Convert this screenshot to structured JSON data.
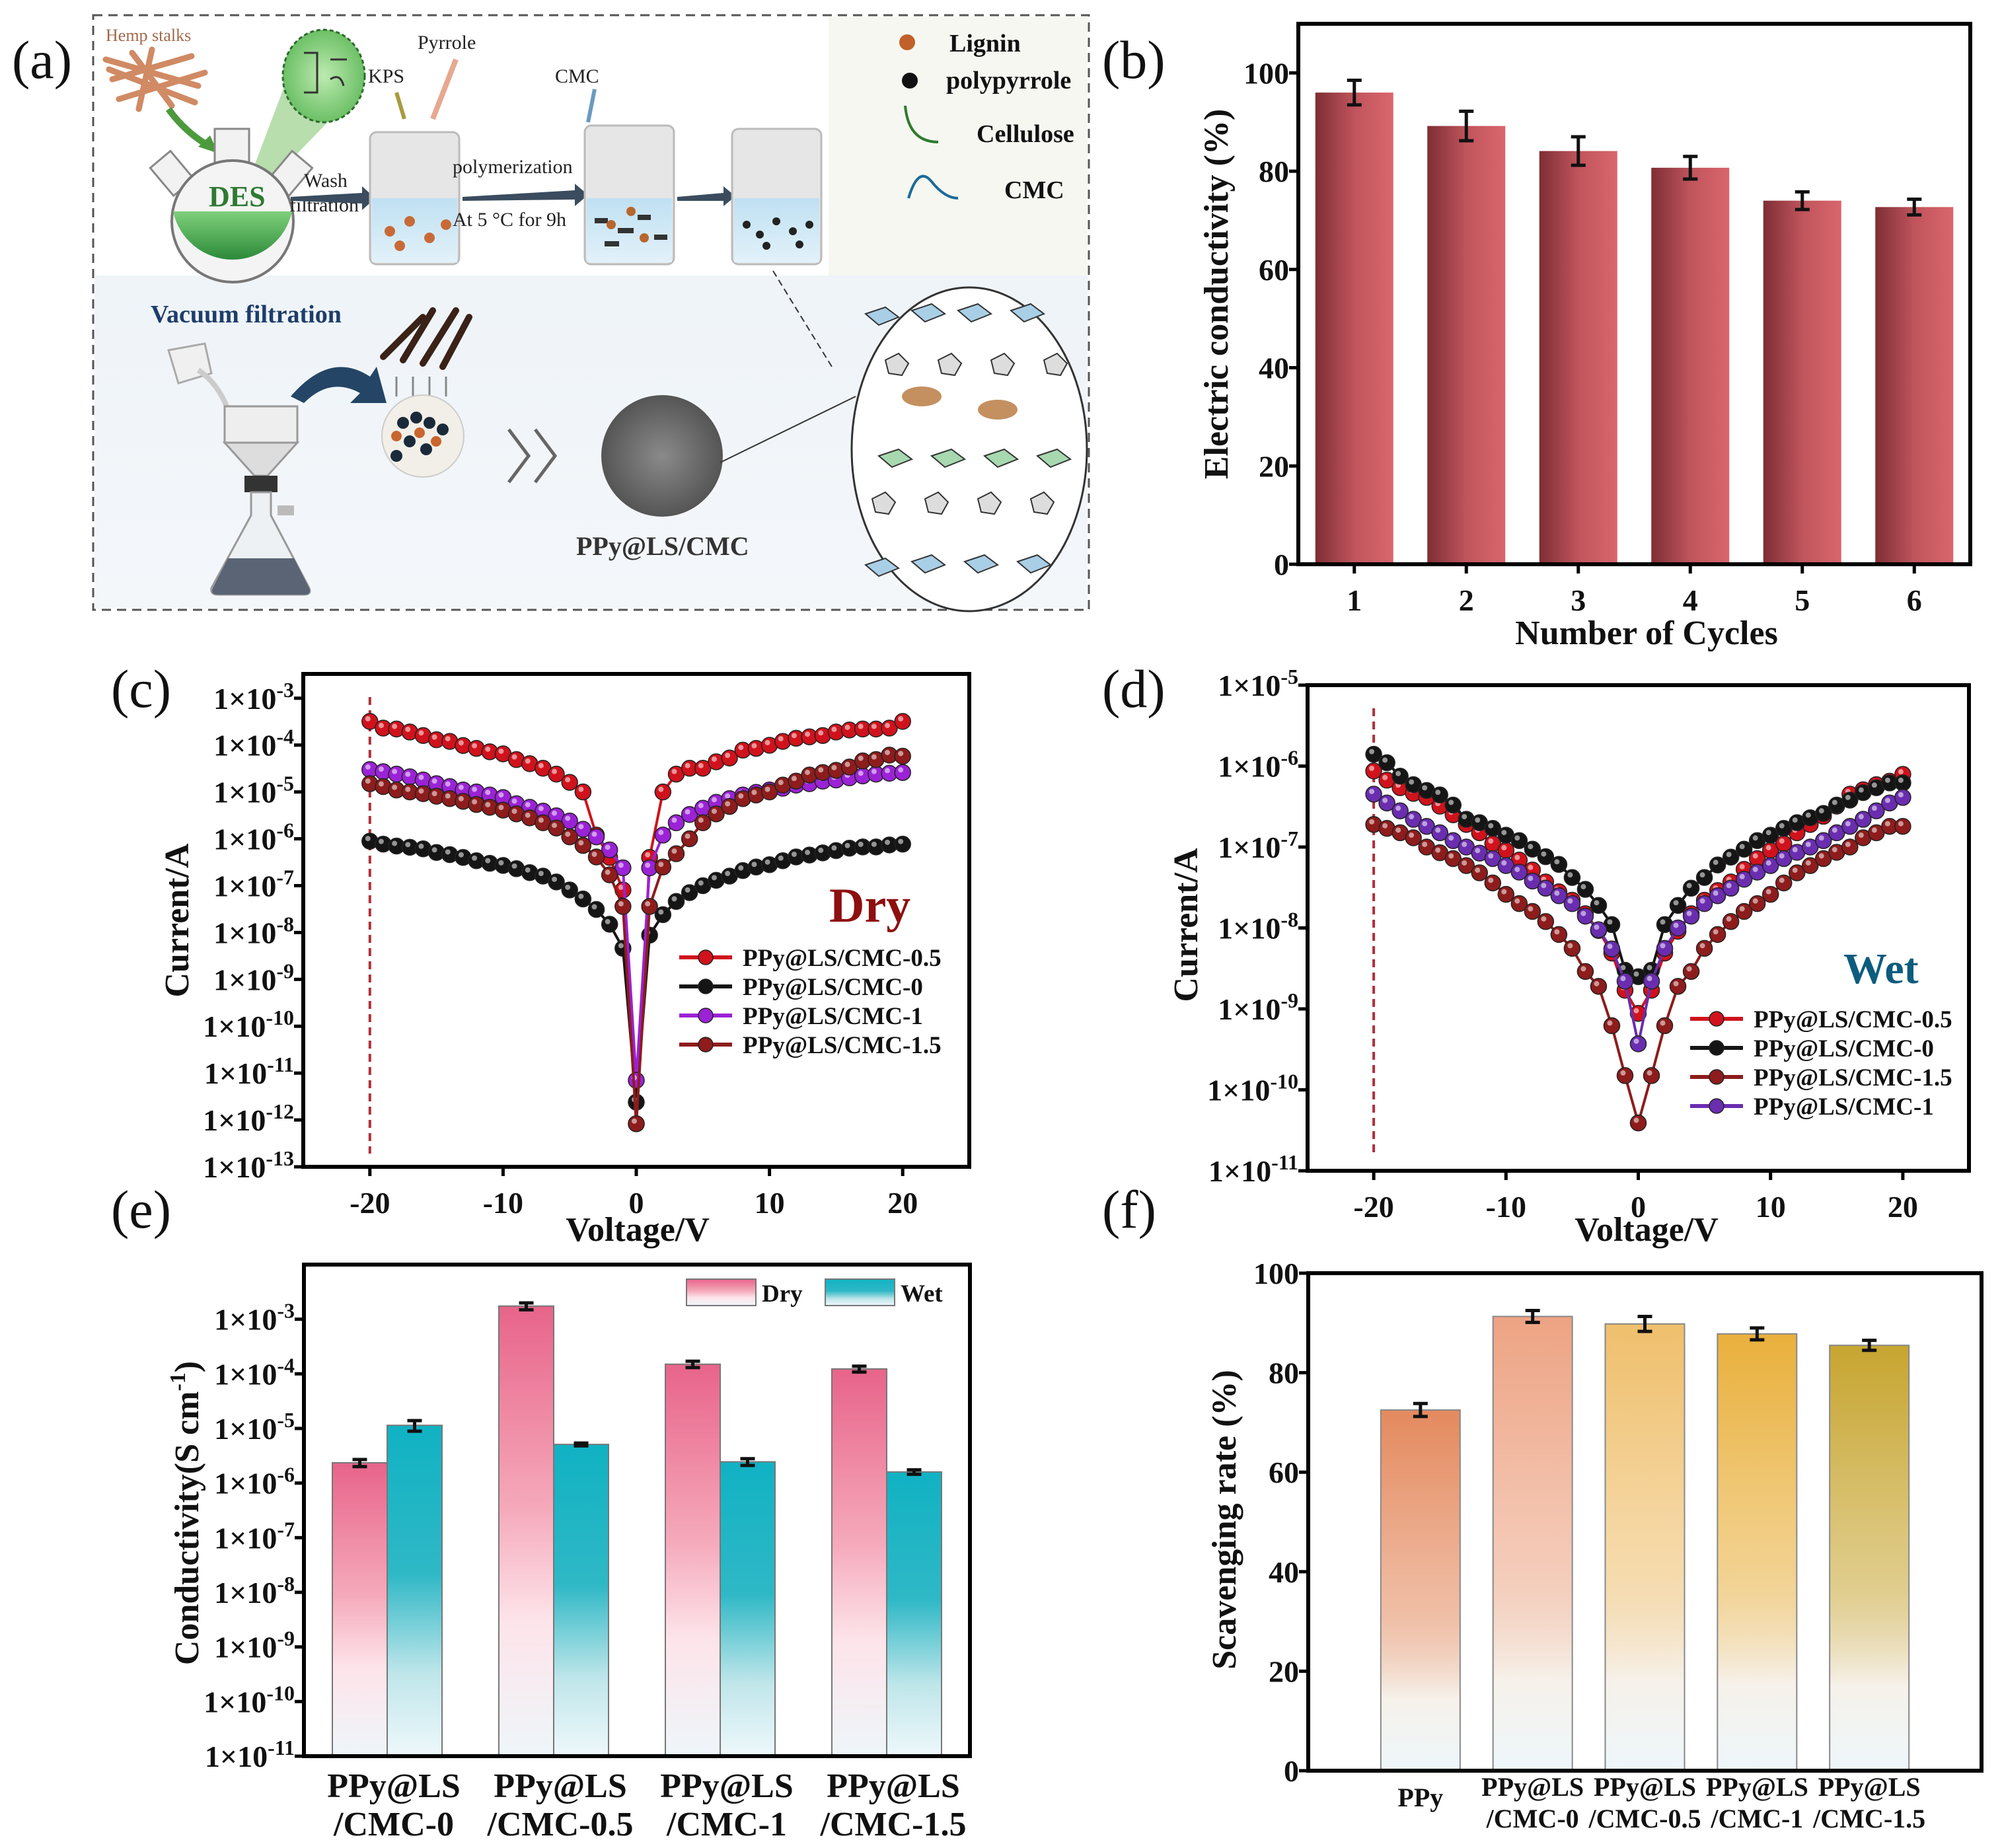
{
  "panel_labels": {
    "a": "(a)",
    "b": "(b)",
    "c": "(c)",
    "d": "(d)",
    "e": "(e)",
    "f": "(f)"
  },
  "panel_a": {
    "hemp": "Hemp stalks",
    "kps": "KPS",
    "pyrrole": "Pyrrole",
    "cmc_arrow": "CMC",
    "des": "DES",
    "wash": "Wash",
    "filtration": "filtration",
    "polymerization": "polymerization",
    "condition": "At 5 °C for 9h",
    "vacuum": "Vacuum filtration",
    "product": "PPy@LS/CMC",
    "legend": {
      "lignin": "Lignin",
      "polypyrrole": "polypyrrole",
      "cellulose": "Cellulose",
      "cmc": "CMC"
    },
    "colors": {
      "lignin": "#c0602a",
      "polypyrrole": "#111111",
      "cellulose": "#2c7a2c",
      "cmc": "#1a6a9a"
    }
  },
  "chart_data": [
    {
      "id": "b",
      "type": "bar",
      "categories": [
        "1",
        "2",
        "3",
        "4",
        "5",
        "6"
      ],
      "values": [
        96.0,
        89.2,
        84.1,
        80.7,
        74.0,
        72.7
      ],
      "errors": [
        2.5,
        3.0,
        2.9,
        2.3,
        1.8,
        1.6
      ],
      "xlabel": "Number of Cycles",
      "ylabel": "Electric conductivity (%)",
      "ylim": [
        0,
        110
      ],
      "yticks": [
        0,
        20,
        40,
        60,
        80,
        100
      ],
      "color": "#c9545c"
    },
    {
      "id": "c",
      "type": "line",
      "yscale": "log",
      "xlabel": "Voltage/V",
      "ylabel": "Current/A",
      "annotation": "Dry",
      "xlim": [
        -25,
        25
      ],
      "xticks": [
        -20,
        -10,
        0,
        10,
        20
      ],
      "ylim": [
        1e-13,
        0.0033
      ],
      "yticks": [
        {
          "v": 0.001,
          "label": "1×10^-3"
        },
        {
          "v": 0.0001,
          "label": "1×10^-4"
        },
        {
          "v": 1e-05,
          "label": "1×10^-5"
        },
        {
          "v": 1e-06,
          "label": "1×10^-6"
        },
        {
          "v": 1e-07,
          "label": "1×10^-7"
        },
        {
          "v": 1e-08,
          "label": "1×10^-8"
        },
        {
          "v": 1e-09,
          "label": "1×10^-9"
        },
        {
          "v": 1e-10,
          "label": "1×10^-10"
        },
        {
          "v": 1e-11,
          "label": "1×10^-11"
        },
        {
          "v": 1e-12,
          "label": "1×10^-12"
        },
        {
          "v": 1e-13,
          "label": "1×10^-13"
        }
      ],
      "reference_line_x": -20,
      "x": [
        -20,
        -19,
        -18,
        -17,
        -16,
        -15,
        -14,
        -13,
        -12,
        -11,
        -10,
        -9,
        -8,
        -7,
        -6,
        -5,
        -4,
        -3,
        -2,
        -1,
        0,
        1,
        2,
        3,
        4,
        5,
        6,
        7,
        8,
        9,
        10,
        11,
        12,
        13,
        14,
        15,
        16,
        17,
        18,
        19,
        20
      ],
      "series": [
        {
          "name": "PPy@LS/CMC-0.5",
          "color": "#d0121c",
          "values": [
            0.00032,
            0.00023,
            0.00022,
            0.00019,
            0.00016,
            0.00013,
            0.00012,
            9.8e-05,
            8.5e-05,
            7.2e-05,
            6.5e-05,
            4.9e-05,
            4e-05,
            3.2e-05,
            2.4e-05,
            1.6e-05,
            1e-05,
            1.2e-06,
            4e-07,
            8.1e-08,
            8.3e-13,
            4e-07,
            1e-05,
            2.4e-05,
            3.2e-05,
            3.2e-05,
            4.4e-05,
            5.3e-05,
            7.8e-05,
            8.5e-05,
            9.9e-05,
            0.00012,
            0.00014,
            0.00015,
            0.00016,
            0.00019,
            0.00021,
            0.00022,
            0.00022,
            0.00023,
            0.00032
          ]
        },
        {
          "name": "PPy@LS/CMC-0",
          "color": "#151515",
          "values": [
            8.9e-07,
            7.7e-07,
            7e-07,
            6.6e-07,
            6.1e-07,
            5.1e-07,
            4.6e-07,
            4e-07,
            3.4e-07,
            3e-07,
            2.7e-07,
            2.3e-07,
            1.9e-07,
            1.6e-07,
            1.2e-07,
            8.1e-08,
            5.2e-08,
            3.1e-08,
            1.5e-08,
            4.6e-09,
            2.4e-12,
            8.8e-09,
            2.4e-08,
            4.6e-08,
            7.1e-08,
            1e-07,
            1.3e-07,
            1.6e-07,
            2.1e-07,
            2.5e-07,
            2.8e-07,
            3.4e-07,
            4.1e-07,
            4.5e-07,
            5e-07,
            5.6e-07,
            6.3e-07,
            6.7e-07,
            6.7e-07,
            7.4e-07,
            7.7e-07
          ]
        },
        {
          "name": "PPy@LS/CMC-1",
          "color": "#9b22d6",
          "values": [
            3e-05,
            2.7e-05,
            2.4e-05,
            2.1e-05,
            1.8e-05,
            1.5e-05,
            1.3e-05,
            1.1e-05,
            1e-05,
            8.6e-06,
            7.6e-06,
            5.6e-06,
            4.7e-06,
            3.9e-06,
            3.1e-06,
            2.4e-06,
            1.6e-06,
            1.1e-06,
            5.8e-07,
            2.4e-07,
            7e-12,
            2.4e-07,
            1.2e-06,
            2.2e-06,
            3.3e-06,
            4.5e-06,
            6e-06,
            7.2e-06,
            8.6e-06,
            9.8e-06,
            1.1e-05,
            1.2e-05,
            1.4e-05,
            1.5e-05,
            1.7e-05,
            1.8e-05,
            2e-05,
            2.2e-05,
            2.4e-05,
            2.5e-05,
            2.6e-05
          ]
        },
        {
          "name": "PPy@LS/CMC-1.5",
          "color": "#8e1c1c",
          "values": [
            1.5e-05,
            1.3e-05,
            1.1e-05,
            1e-05,
            9.2e-06,
            8.1e-06,
            7.2e-06,
            6.3e-06,
            5.4e-06,
            4.7e-06,
            4.1e-06,
            3.4e-06,
            2.8e-06,
            2.2e-06,
            1.7e-06,
            1.1e-06,
            7.2e-07,
            4.1e-07,
            1.7e-07,
            3.6e-08,
            8.3e-13,
            3.6e-08,
            2.5e-07,
            4.8e-07,
            1e-06,
            2.2e-06,
            3.4e-06,
            4.9e-06,
            7.2e-06,
            8.6e-06,
            1e-05,
            1.4e-05,
            1.7e-05,
            2.3e-05,
            2.6e-05,
            2.9e-05,
            3.4e-05,
            4.6e-05,
            4.9e-05,
            6.1e-05,
            5.8e-05
          ]
        }
      ],
      "legend_position": "right-center"
    },
    {
      "id": "d",
      "type": "line",
      "yscale": "log",
      "xlabel": "Voltage/V",
      "ylabel": "Current/A",
      "annotation": "Wet",
      "xlim": [
        -25,
        25
      ],
      "xticks": [
        -20,
        -10,
        0,
        10,
        20
      ],
      "ylim": [
        1e-11,
        1e-05
      ],
      "yticks": [
        {
          "v": 1e-05,
          "label": "1×10^-5"
        },
        {
          "v": 1e-06,
          "label": "1×10^-6"
        },
        {
          "v": 1e-07,
          "label": "1×10^-7"
        },
        {
          "v": 1e-08,
          "label": "1×10^-8"
        },
        {
          "v": 1e-09,
          "label": "1×10^-9"
        },
        {
          "v": 1e-10,
          "label": "1×10^-10"
        },
        {
          "v": 1e-11,
          "label": "1×10^-11"
        }
      ],
      "reference_line_x": -20,
      "x": [
        -20,
        -19,
        -18,
        -17,
        -16,
        -15,
        -14,
        -13,
        -12,
        -11,
        -10,
        -9,
        -8,
        -7,
        -6,
        -5,
        -4,
        -3,
        -2,
        -1,
        0,
        1,
        2,
        3,
        4,
        5,
        6,
        7,
        8,
        9,
        10,
        11,
        12,
        13,
        14,
        15,
        16,
        17,
        18,
        19,
        20
      ],
      "series": [
        {
          "name": "PPy@LS/CMC-0.5",
          "color": "#d0121c",
          "values": [
            8.7e-07,
            6.7e-07,
            5.4e-07,
            4.6e-07,
            4.1e-07,
            3.2e-07,
            2.5e-07,
            1.9e-07,
            1.5e-07,
            1.1e-07,
            9.1e-08,
            6.9e-08,
            5.2e-08,
            3.7e-08,
            2.8e-08,
            2.2e-08,
            1.5e-08,
            9.3e-09,
            4.9e-09,
            1.7e-09,
            8.8e-10,
            1.7e-09,
            4.9e-09,
            9.1e-09,
            1.5e-08,
            2.2e-08,
            2.9e-08,
            3.7e-08,
            5.3e-08,
            7.2e-08,
            9.1e-08,
            1.1e-07,
            1.5e-07,
            1.9e-07,
            2.4e-07,
            3.2e-07,
            4.5e-07,
            5.1e-07,
            5.9e-07,
            6.5e-07,
            7.9e-07
          ]
        },
        {
          "name": "PPy@LS/CMC-0",
          "color": "#151515",
          "values": [
            1.4e-06,
            1.1e-06,
            7.5e-07,
            5.9e-07,
            5e-07,
            4.4e-07,
            3.3e-07,
            2.2e-07,
            2e-07,
            1.7e-07,
            1.4e-07,
            1.2e-07,
            9.4e-08,
            7.6e-08,
            6.1e-08,
            4.2e-08,
            3e-08,
            1.9e-08,
            1.1e-08,
            3e-09,
            2.5e-09,
            3e-09,
            1.1e-08,
            1.9e-08,
            3.1e-08,
            4.2e-08,
            6e-08,
            7.5e-08,
            9.4e-08,
            1.2e-07,
            1.4e-07,
            1.7e-07,
            2e-07,
            2.3e-07,
            2.6e-07,
            3.3e-07,
            3.8e-07,
            4.7e-07,
            5.4e-07,
            6.2e-07,
            6.2e-07
          ]
        },
        {
          "name": "PPy@LS/CMC-1.5",
          "color": "#8e1c1c",
          "values": [
            1.9e-07,
            1.7e-07,
            1.5e-07,
            1.3e-07,
            1e-07,
            8.5e-08,
            7.2e-08,
            5.9e-08,
            4.8e-08,
            3.6e-08,
            2.6e-08,
            2e-08,
            1.6e-08,
            1.2e-08,
            8.3e-09,
            5.6e-09,
            2.9e-09,
            1.9e-09,
            6.2e-10,
            1.5e-10,
            3.9e-11,
            1.5e-10,
            6.2e-10,
            1.9e-09,
            2.9e-09,
            5.6e-09,
            8.3e-09,
            1.2e-08,
            1.6e-08,
            2e-08,
            2.6e-08,
            3.6e-08,
            4.8e-08,
            5.9e-08,
            7.2e-08,
            8.6e-08,
            1e-07,
            1.3e-07,
            1.5e-07,
            1.8e-07,
            1.8e-07
          ]
        },
        {
          "name": "PPy@LS/CMC-1",
          "color": "#6a2db0",
          "values": [
            4.5e-07,
            3.5e-07,
            2.8e-07,
            2.2e-07,
            1.8e-07,
            1.5e-07,
            1.2e-07,
            1e-07,
            8.4e-08,
            7.2e-08,
            5.9e-08,
            4.9e-08,
            3.8e-08,
            3.1e-08,
            2.5e-08,
            2e-08,
            1.4e-08,
            9.5e-09,
            5.5e-09,
            2.2e-09,
            3.7e-10,
            2.2e-09,
            5.6e-09,
            1e-08,
            1.4e-08,
            2e-08,
            2.5e-08,
            3.1e-08,
            4e-08,
            4.9e-08,
            5.9e-08,
            7.2e-08,
            8.6e-08,
            1e-07,
            1.2e-07,
            1.5e-07,
            1.8e-07,
            2.2e-07,
            2.8e-07,
            3.5e-07,
            4.1e-07
          ]
        }
      ],
      "legend_position": "bottom-right"
    },
    {
      "id": "e",
      "type": "bar",
      "yscale": "log",
      "categories": [
        [
          "PPy@LS",
          "/CMC-0"
        ],
        [
          "PPy@LS",
          "/CMC-0.5"
        ],
        [
          "PPy@LS",
          "/CMC-1"
        ],
        [
          "PPy@LS",
          "/CMC-1.5"
        ]
      ],
      "ylabel": "Conductivity(S cm^-1)",
      "ylim": [
        1e-11,
        0.01
      ],
      "yticks": [
        {
          "v": 0.001,
          "label": "1×10^-3"
        },
        {
          "v": 0.0001,
          "label": "1×10^-4"
        },
        {
          "v": 1e-05,
          "label": "1×10^-5"
        },
        {
          "v": 1e-06,
          "label": "1×10^-6"
        },
        {
          "v": 1e-07,
          "label": "1×10^-7"
        },
        {
          "v": 1e-08,
          "label": "1×10^-8"
        },
        {
          "v": 1e-09,
          "label": "1×10^-9"
        },
        {
          "v": 1e-10,
          "label": "1×10^-10"
        },
        {
          "v": 1e-11,
          "label": "1×10^-11"
        }
      ],
      "series": [
        {
          "name": "Dry",
          "color": "#e8688c",
          "values": [
            2.35e-06,
            0.00174,
            0.00015,
            0.000123
          ],
          "errors": [
            3.5e-07,
            0.00025,
            2e-05,
            1.5e-05
          ]
        },
        {
          "name": "Wet",
          "color": "#14b4c4",
          "values": [
            1.14e-05,
            5.1e-06,
            2.45e-06,
            1.6e-06
          ],
          "errors": [
            2.5e-06,
            3e-07,
            3.5e-07,
            1.5e-07
          ]
        }
      ],
      "legend_position": "top-right"
    },
    {
      "id": "f",
      "type": "bar",
      "categories": [
        [
          "PPy"
        ],
        [
          "PPy@LS",
          "/CMC-0"
        ],
        [
          "PPy@LS",
          "/CMC-0.5"
        ],
        [
          "PPy@LS",
          "/CMC-1"
        ],
        [
          "PPy@LS",
          "/CMC-1.5"
        ]
      ],
      "values": [
        72.5,
        91.3,
        89.8,
        87.8,
        85.5
      ],
      "errors": [
        1.3,
        1.2,
        1.5,
        1.2,
        1.0
      ],
      "colors": [
        "#e48a5e",
        "#eda383",
        "#efbf6c",
        "#e9b03c",
        "#c7a530"
      ],
      "ylabel": "Scavenging rate (%)",
      "ylim": [
        0,
        100
      ],
      "yticks": [
        0,
        20,
        40,
        60,
        80,
        100
      ]
    }
  ]
}
